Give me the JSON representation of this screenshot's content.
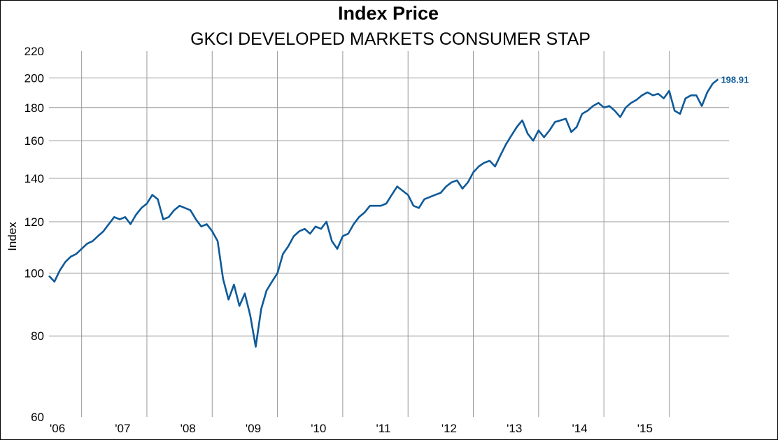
{
  "chart_data": {
    "type": "line",
    "title": "Index Price",
    "subtitle": "GKCI DEVELOPED MARKETS CONSUMER STAP",
    "ylabel": "Index",
    "xlabel": "",
    "y_scale": "log",
    "ylim": [
      60,
      220
    ],
    "y_ticks": [
      60,
      80,
      100,
      120,
      140,
      160,
      180,
      200,
      220
    ],
    "x_ticks": [
      "'06",
      "'07",
      "'08",
      "'09",
      "'10",
      "'11",
      "'12",
      "'13",
      "'14",
      "'15"
    ],
    "xlim": [
      "2006-01",
      "2016-06"
    ],
    "grid": true,
    "last_value_label": "198.91",
    "colors": {
      "line": "#0e5a99",
      "grid": "#9a9a9a",
      "axis_text": "#000000"
    },
    "series": [
      {
        "x": [
          "2006-01",
          "2006-02",
          "2006-03",
          "2006-04",
          "2006-05",
          "2006-06",
          "2006-07",
          "2006-08",
          "2006-09",
          "2006-10",
          "2006-11",
          "2006-12",
          "2007-01",
          "2007-02",
          "2007-03",
          "2007-04",
          "2007-05",
          "2007-06",
          "2007-07",
          "2007-08",
          "2007-09",
          "2007-10",
          "2007-11",
          "2007-12",
          "2008-01",
          "2008-02",
          "2008-03",
          "2008-04",
          "2008-05",
          "2008-06",
          "2008-07",
          "2008-08",
          "2008-09",
          "2008-10",
          "2008-11",
          "2008-12",
          "2009-01",
          "2009-02",
          "2009-03",
          "2009-04",
          "2009-05",
          "2009-06",
          "2009-07",
          "2009-08",
          "2009-09",
          "2009-10",
          "2009-11",
          "2009-12",
          "2010-01",
          "2010-02",
          "2010-03",
          "2010-04",
          "2010-05",
          "2010-06",
          "2010-07",
          "2010-08",
          "2010-09",
          "2010-10",
          "2010-11",
          "2010-12",
          "2011-01",
          "2011-02",
          "2011-03",
          "2011-04",
          "2011-05",
          "2011-06",
          "2011-07",
          "2011-08",
          "2011-09",
          "2011-10",
          "2011-11",
          "2011-12",
          "2012-01",
          "2012-02",
          "2012-03",
          "2012-04",
          "2012-05",
          "2012-06",
          "2012-07",
          "2012-08",
          "2012-09",
          "2012-10",
          "2012-11",
          "2012-12",
          "2013-01",
          "2013-02",
          "2013-03",
          "2013-04",
          "2013-05",
          "2013-06",
          "2013-07",
          "2013-08",
          "2013-09",
          "2013-10",
          "2013-11",
          "2013-12",
          "2014-01",
          "2014-02",
          "2014-03",
          "2014-04",
          "2014-05",
          "2014-06",
          "2014-07",
          "2014-08",
          "2014-09",
          "2014-10",
          "2014-11",
          "2014-12",
          "2015-01",
          "2015-02",
          "2015-03",
          "2015-04",
          "2015-05",
          "2015-06",
          "2015-07",
          "2015-08",
          "2015-09",
          "2015-10",
          "2015-11",
          "2015-12",
          "2016-01",
          "2016-02",
          "2016-03",
          "2016-04"
        ],
        "values": [
          99,
          97,
          101,
          104,
          106,
          107,
          109,
          111,
          112,
          114,
          116,
          119,
          122,
          121,
          122,
          119,
          123,
          126,
          128,
          132,
          130,
          121,
          122,
          125,
          127,
          126,
          125,
          121,
          118,
          119,
          116,
          112,
          98,
          91,
          96,
          89,
          93,
          86,
          77,
          88,
          94,
          97,
          100,
          107,
          110,
          114,
          116,
          117,
          115,
          118,
          117,
          120,
          112,
          109,
          114,
          115,
          119,
          122,
          124,
          127,
          127,
          127,
          128,
          132,
          136,
          134,
          132,
          127,
          126,
          130,
          131,
          132,
          133,
          136,
          138,
          139,
          135,
          138,
          143,
          146,
          148,
          149,
          146,
          152,
          158,
          163,
          168,
          172,
          164,
          160,
          166,
          162,
          166,
          171,
          172,
          173,
          165,
          168,
          176,
          178,
          181,
          183,
          180,
          181,
          178,
          174,
          180,
          183,
          185,
          188,
          190,
          188,
          189,
          186,
          191,
          178,
          176,
          186,
          188,
          188,
          181,
          190,
          196,
          199
        ]
      }
    ]
  }
}
